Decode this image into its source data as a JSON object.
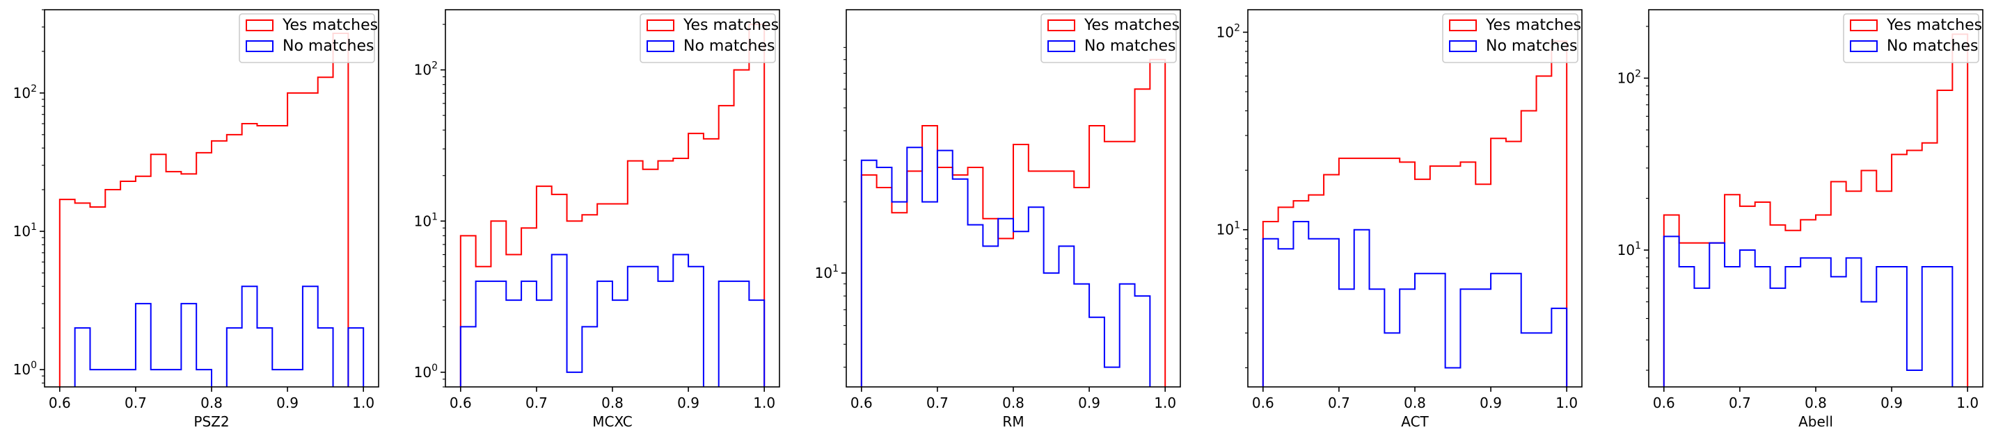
{
  "chart_data": [
    {
      "type": "histogram",
      "xlabel": "PSZ2",
      "xlim": [
        0.58,
        1.02
      ],
      "ylim": [
        0.75,
        400
      ],
      "yscale": "log",
      "xticks": [
        0.6,
        0.7,
        0.8,
        0.9,
        1.0
      ],
      "xtick_labels": [
        "0.6",
        "0.7",
        "0.8",
        "0.9",
        "1.0"
      ],
      "ytick_values": [
        1,
        10,
        100
      ],
      "bin_edges": [
        0.6,
        0.62,
        0.64,
        0.66,
        0.68,
        0.7,
        0.72,
        0.74,
        0.76,
        0.78,
        0.8,
        0.82,
        0.84,
        0.86,
        0.88,
        0.9,
        0.92,
        0.94,
        0.96,
        0.98,
        1.0
      ],
      "legend": "upper right",
      "series": [
        {
          "name": "Yes matches",
          "color": "#ff0000",
          "values": [
            17,
            16,
            15,
            20,
            23,
            25,
            36,
            27,
            26,
            37,
            45,
            50,
            60,
            58,
            58,
            100,
            100,
            130,
            270,
            0
          ]
        },
        {
          "name": "No matches",
          "color": "#0000ff",
          "values": [
            0,
            2,
            1,
            1,
            1,
            3,
            1,
            1,
            3,
            1,
            0,
            2,
            4,
            2,
            1,
            1,
            4,
            2,
            0,
            2
          ]
        }
      ]
    },
    {
      "type": "histogram",
      "xlabel": "MCXC",
      "xlim": [
        0.58,
        1.02
      ],
      "ylim": [
        0.8,
        250
      ],
      "yscale": "log",
      "xticks": [
        0.6,
        0.7,
        0.8,
        0.9,
        1.0
      ],
      "xtick_labels": [
        "0.6",
        "0.7",
        "0.8",
        "0.9",
        "1.0"
      ],
      "ytick_values": [
        1,
        10,
        100
      ],
      "bin_edges": [
        0.6,
        0.62,
        0.64,
        0.66,
        0.68,
        0.7,
        0.72,
        0.74,
        0.76,
        0.78,
        0.8,
        0.82,
        0.84,
        0.86,
        0.88,
        0.9,
        0.92,
        0.94,
        0.96,
        0.98,
        1.0
      ],
      "legend": "upper right",
      "series": [
        {
          "name": "Yes matches",
          "color": "#ff0000",
          "values": [
            8,
            5,
            10,
            6,
            9,
            17,
            15,
            10,
            11,
            13,
            13,
            25,
            22,
            25,
            26,
            38,
            35,
            58,
            100,
            200
          ]
        },
        {
          "name": "No matches",
          "color": "#0000ff",
          "values": [
            2,
            4,
            4,
            3,
            4,
            3,
            6,
            1,
            2,
            4,
            3,
            5,
            5,
            4,
            6,
            5,
            0,
            4,
            4,
            3
          ]
        }
      ]
    },
    {
      "type": "histogram",
      "xlabel": "RM",
      "xlim": [
        0.58,
        1.02
      ],
      "ylim": [
        3.3,
        130
      ],
      "yscale": "log",
      "xticks": [
        0.6,
        0.7,
        0.8,
        0.9,
        1.0
      ],
      "xtick_labels": [
        "0.6",
        "0.7",
        "0.8",
        "0.9",
        "1.0"
      ],
      "ytick_values": [
        10
      ],
      "bin_edges": [
        0.6,
        0.62,
        0.64,
        0.66,
        0.68,
        0.7,
        0.72,
        0.74,
        0.76,
        0.78,
        0.8,
        0.82,
        0.84,
        0.86,
        0.88,
        0.9,
        0.92,
        0.94,
        0.96,
        0.98,
        1.0
      ],
      "legend": "upper right",
      "series": [
        {
          "name": "Yes matches",
          "color": "#ff0000",
          "values": [
            26,
            23,
            18,
            27,
            42,
            28,
            26,
            28,
            17,
            14,
            35,
            27,
            27,
            27,
            23,
            42,
            36,
            36,
            60,
            80
          ]
        },
        {
          "name": "No matches",
          "color": "#0000ff",
          "values": [
            30,
            28,
            20,
            34,
            20,
            33,
            25,
            16,
            13,
            17,
            15,
            19,
            10,
            13,
            9,
            6.5,
            4,
            9,
            8,
            0
          ]
        }
      ]
    },
    {
      "type": "histogram",
      "xlabel": "ACT",
      "xlim": [
        0.58,
        1.02
      ],
      "ylim": [
        1.6,
        130
      ],
      "yscale": "log",
      "xticks": [
        0.6,
        0.7,
        0.8,
        0.9,
        1.0
      ],
      "xtick_labels": [
        "0.6",
        "0.7",
        "0.8",
        "0.9",
        "1.0"
      ],
      "ytick_values": [
        10,
        100
      ],
      "bin_edges": [
        0.6,
        0.62,
        0.64,
        0.66,
        0.68,
        0.7,
        0.72,
        0.74,
        0.76,
        0.78,
        0.8,
        0.82,
        0.84,
        0.86,
        0.88,
        0.9,
        0.92,
        0.94,
        0.96,
        0.98,
        1.0
      ],
      "legend": "upper right",
      "series": [
        {
          "name": "Yes matches",
          "color": "#ff0000",
          "values": [
            11,
            13,
            14,
            15,
            19,
            23,
            23,
            23,
            23,
            22,
            18,
            21,
            21,
            22,
            17,
            29,
            28,
            40,
            60,
            90
          ]
        },
        {
          "name": "No matches",
          "color": "#0000ff",
          "values": [
            9,
            8,
            11,
            9,
            9,
            5,
            10,
            5,
            3,
            5,
            6,
            6,
            2,
            5,
            5,
            6,
            6,
            3,
            3,
            4
          ]
        }
      ]
    },
    {
      "type": "histogram",
      "xlabel": "Abell",
      "xlim": [
        0.58,
        1.02
      ],
      "ylim": [
        1.6,
        250
      ],
      "yscale": "log",
      "xticks": [
        0.6,
        0.7,
        0.8,
        0.9,
        1.0
      ],
      "xtick_labels": [
        "0.6",
        "0.7",
        "0.8",
        "0.9",
        "1.0"
      ],
      "ytick_values": [
        10,
        100
      ],
      "bin_edges": [
        0.6,
        0.62,
        0.64,
        0.66,
        0.68,
        0.7,
        0.72,
        0.74,
        0.76,
        0.78,
        0.8,
        0.82,
        0.84,
        0.86,
        0.88,
        0.9,
        0.92,
        0.94,
        0.96,
        0.98,
        1.0
      ],
      "legend": "upper right",
      "series": [
        {
          "name": "Yes matches",
          "color": "#ff0000",
          "values": [
            16,
            11,
            11,
            11,
            21,
            18,
            19,
            14,
            13,
            15,
            16,
            25,
            22,
            29,
            22,
            36,
            38,
            42,
            85,
            180
          ]
        },
        {
          "name": "No matches",
          "color": "#0000ff",
          "values": [
            12,
            8,
            6,
            11,
            8,
            10,
            8,
            6,
            8,
            9,
            9,
            7,
            9,
            5,
            8,
            8,
            2,
            8,
            8,
            0
          ]
        }
      ]
    }
  ]
}
